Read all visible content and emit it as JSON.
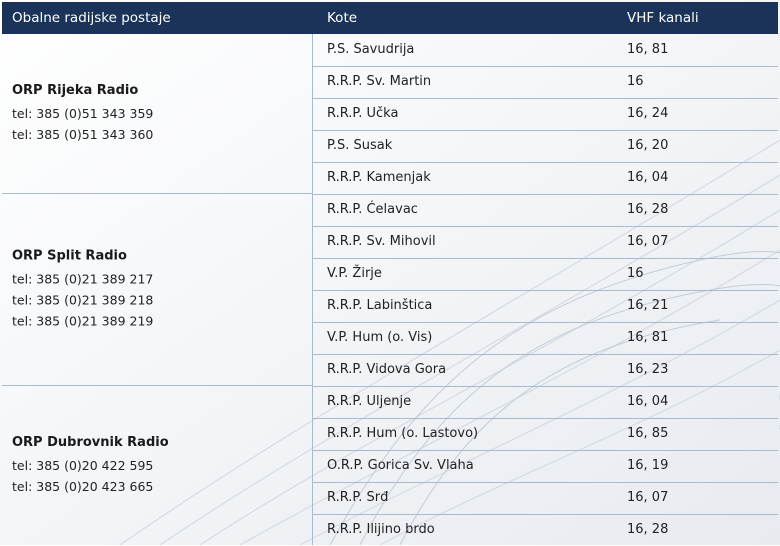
{
  "header": {
    "col1": "Obalne radijske postaje",
    "col2": "Kote",
    "col3": "VHF kanali"
  },
  "groups": [
    {
      "name": "ORP Rijeka Radio",
      "phones": [
        "tel: 385 (0)51 343 359",
        "tel: 385 (0)51 343 360"
      ],
      "rows": [
        {
          "kota": "P.S. Savudrija",
          "vhf": "16, 81"
        },
        {
          "kota": "R.R.P. Sv. Martin",
          "vhf": "16"
        },
        {
          "kota": "R.R.P. Učka",
          "vhf": "16, 24"
        },
        {
          "kota": "P.S. Susak",
          "vhf": "16, 20"
        },
        {
          "kota": "R.R.P. Kamenjak",
          "vhf": "16, 04"
        }
      ]
    },
    {
      "name": "ORP Split Radio",
      "phones": [
        "tel: 385 (0)21 389 217",
        "tel: 385 (0)21 389 218",
        "tel: 385 (0)21 389 219"
      ],
      "rows": [
        {
          "kota": "R.R.P. Ćelavac",
          "vhf": "16, 28"
        },
        {
          "kota": "R.R.P. Sv. Mihovil",
          "vhf": "16, 07"
        },
        {
          "kota": "V.P. Žirje",
          "vhf": "16"
        },
        {
          "kota": "R.R.P. Labinštica",
          "vhf": "16, 21"
        },
        {
          "kota": "V.P. Hum (o. Vis)",
          "vhf": "16, 81"
        },
        {
          "kota": "R.R.P. Vidova Gora",
          "vhf": "16, 23"
        }
      ]
    },
    {
      "name": "ORP Dubrovnik Radio",
      "phones": [
        "tel: 385 (0)20 422 595",
        "tel: 385 (0)20 423 665"
      ],
      "rows": [
        {
          "kota": "R.R.P. Uljenje",
          "vhf": "16, 04"
        },
        {
          "kota": "R.R.P. Hum (o. Lastovo)",
          "vhf": "16, 85"
        },
        {
          "kota": "O.R.P. Gorica Sv. Vlaha",
          "vhf": "16, 19"
        },
        {
          "kota": "R.R.P. Srđ",
          "vhf": "16, 07"
        },
        {
          "kota": "R.R.P. Ilijino brdo",
          "vhf": "16, 28"
        }
      ]
    }
  ]
}
